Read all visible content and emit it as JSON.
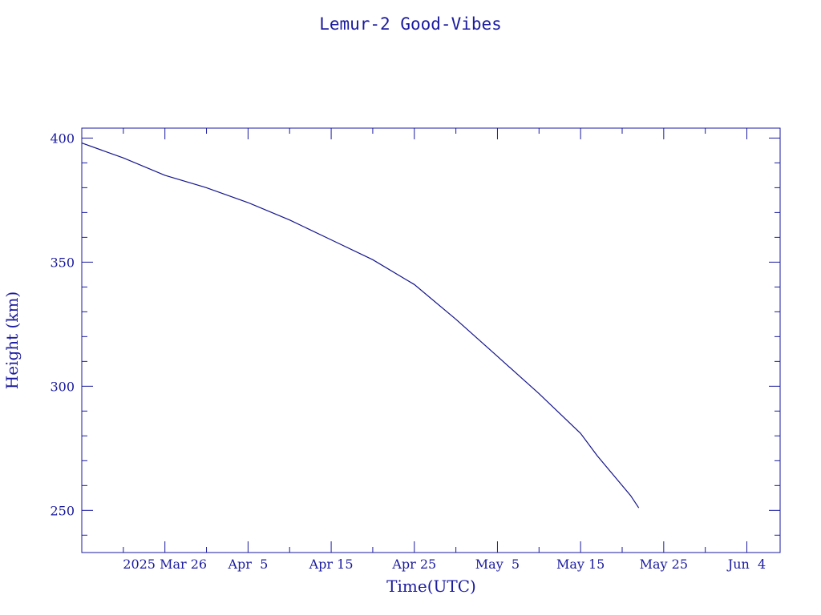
{
  "chart_data": {
    "type": "line",
    "title": "Lemur-2 Good-Vibes",
    "xlabel": "Time(UTC)",
    "ylabel": "Height (km)",
    "xlim": [
      "2025-03-16",
      "2025-06-08"
    ],
    "ylim": [
      233,
      404
    ],
    "grid": false,
    "x_ticks": [
      {
        "date": "2025-03-26",
        "label": "2025 Mar 26"
      },
      {
        "date": "2025-04-05",
        "label": "Apr  5"
      },
      {
        "date": "2025-04-15",
        "label": "Apr 15"
      },
      {
        "date": "2025-04-25",
        "label": "Apr 25"
      },
      {
        "date": "2025-05-05",
        "label": "May  5"
      },
      {
        "date": "2025-05-15",
        "label": "May 15"
      },
      {
        "date": "2025-05-25",
        "label": "May 25"
      },
      {
        "date": "2025-06-04",
        "label": "Jun  4"
      }
    ],
    "y_ticks": [
      250,
      300,
      350,
      400
    ],
    "series": [
      {
        "x": [
          "2025-03-16",
          "2025-03-21",
          "2025-03-26",
          "2025-03-31",
          "2025-04-05",
          "2025-04-10",
          "2025-04-15",
          "2025-04-20",
          "2025-04-25",
          "2025-04-30",
          "2025-05-05",
          "2025-05-10",
          "2025-05-15",
          "2025-05-17",
          "2025-05-19",
          "2025-05-21",
          "2025-05-22"
        ],
        "y": [
          398,
          392,
          385,
          380,
          374,
          367,
          359,
          351,
          341,
          327,
          312,
          297,
          281,
          272,
          264,
          256,
          251
        ]
      }
    ]
  }
}
